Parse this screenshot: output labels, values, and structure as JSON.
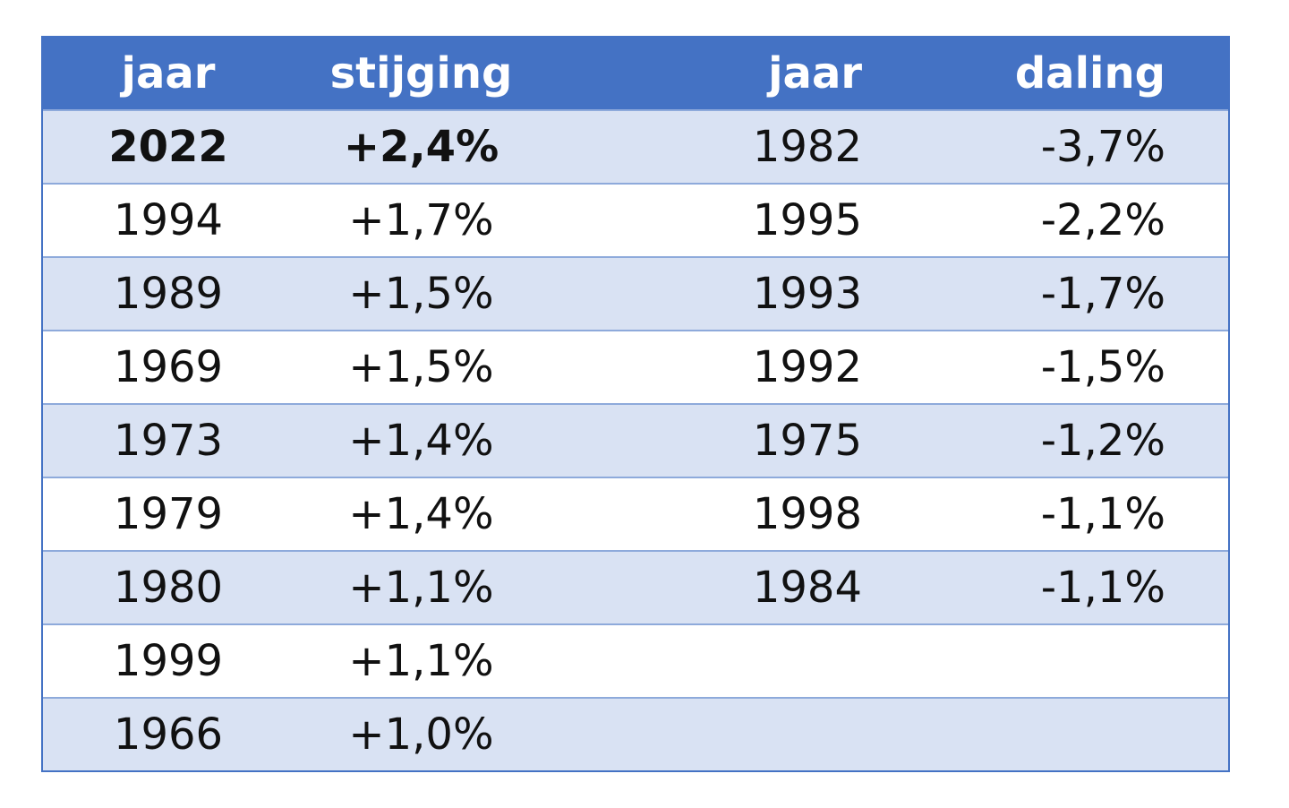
{
  "table": {
    "headers": [
      "jaar",
      "stijging",
      "jaar",
      "daling"
    ],
    "rows": [
      {
        "rise_year": "2022",
        "rise": "+2,4%",
        "fall_year": "1982",
        "fall": "-3,7%",
        "bold": true
      },
      {
        "rise_year": "1994",
        "rise": "+1,7%",
        "fall_year": "1995",
        "fall": "-2,2%"
      },
      {
        "rise_year": "1989",
        "rise": "+1,5%",
        "fall_year": "1993",
        "fall": "-1,7%"
      },
      {
        "rise_year": "1969",
        "rise": "+1,5%",
        "fall_year": "1992",
        "fall": "-1,5%"
      },
      {
        "rise_year": "1973",
        "rise": "+1,4%",
        "fall_year": "1975",
        "fall": "-1,2%"
      },
      {
        "rise_year": "1979",
        "rise": "+1,4%",
        "fall_year": "1998",
        "fall": "-1,1%"
      },
      {
        "rise_year": "1980",
        "rise": "+1,1%",
        "fall_year": "1984",
        "fall": "-1,1%"
      },
      {
        "rise_year": "1999",
        "rise": "+1,1%",
        "fall_year": "",
        "fall": ""
      },
      {
        "rise_year": "1966",
        "rise": "+1,0%",
        "fall_year": "",
        "fall": ""
      }
    ]
  },
  "colors": {
    "header_bg": "#4472c4",
    "band_bg": "#d9e2f3",
    "border": "#8eaadb"
  }
}
